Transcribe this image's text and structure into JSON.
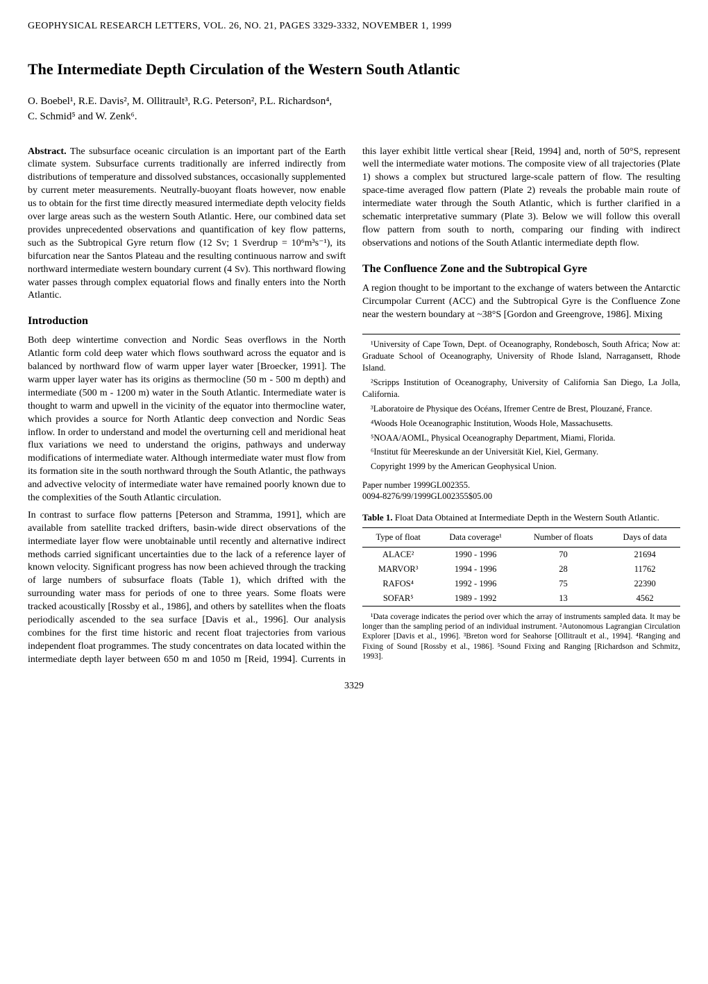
{
  "journal_header": "GEOPHYSICAL RESEARCH LETTERS, VOL. 26, NO. 21, PAGES 3329-3332, NOVEMBER 1, 1999",
  "title": "The Intermediate Depth Circulation of the Western South Atlantic",
  "authors_line1": "O. Boebel¹, R.E. Davis², M. Ollitrault³, R.G. Peterson², P.L. Richardson⁴,",
  "authors_line2": "C. Schmid⁵ and W. Zenk⁶.",
  "abstract_label": "Abstract.",
  "abstract_text": "The subsurface oceanic circulation is an important part of the Earth climate system. Subsurface currents traditionally are inferred indirectly from distributions of temperature and dissolved substances, occasionally supplemented by current meter measurements. Neutrally-buoyant floats however, now enable us to obtain for the first time directly measured intermediate depth velocity fields over large areas such as the western South Atlantic. Here, our combined data set provides unprecedented observations and quantification of key flow patterns, such as the Subtropical Gyre return flow (12 Sv; 1 Sverdrup = 10⁶m³s⁻¹), its bifurcation near the Santos Plateau and the resulting continuous narrow and swift northward intermediate western boundary current (4 Sv). This northward flowing water passes through complex equatorial flows and finally enters into the North Atlantic.",
  "section1_heading": "Introduction",
  "intro_p1": "Both deep wintertime convection and Nordic Seas overflows in the North Atlantic form cold deep water which flows southward across the equator and is balanced by northward flow of warm upper layer water [Broecker, 1991]. The warm upper layer water has its origins as thermocline (50 m - 500 m depth) and intermediate (500 m - 1200 m) water in the South Atlantic. Intermediate water is thought to warm and upwell in the vicinity of the equator into thermocline water, which provides a source for North Atlantic deep convection and Nordic Seas inflow. In order to understand and model the overturning cell and meridional heat flux variations we need to understand the origins, pathways and underway modifications of intermediate water. Although intermediate water must flow from its formation site in the south northward through the South Atlantic, the pathways and advective velocity of intermediate water have remained poorly known due to the complexities of the South Atlantic circulation.",
  "intro_p2": "In contrast to surface flow patterns [Peterson and Stramma, 1991], which are available from satellite tracked drifters, basin-wide direct observations of the intermediate layer flow were unobtainable until recently and alternative indirect methods carried significant uncertainties due to the lack of a reference layer of known velocity. Significant progress has now been achieved through the tracking of large numbers of subsurface floats (Table 1), which drifted with the surrounding water mass for periods of one to three years. Some floats were tracked acoustically [Rossby et al., 1986], and others by satellites when the floats periodically ascended to the sea surface [Davis et al., 1996]. Our analysis combines for the first time historic and recent float trajectories from various independent float programmes. The study concentrates on data located within the intermediate depth layer between 650 m and 1050 m [Reid, 1994]. Currents in this layer exhibit little vertical shear [Reid, 1994] and, north of 50°S, represent well the intermediate water motions. The composite view of all trajectories (Plate 1) shows a complex but structured large-scale pattern of flow. The resulting space-time averaged flow pattern (Plate 2) reveals the probable main route of intermediate water through the South Atlantic, which is further clarified in a schematic interpretative summary (Plate 3). Below we will follow this overall flow pattern from south to north, comparing our finding with indirect observations and notions of the South Atlantic intermediate depth flow.",
  "section2_heading": "The Confluence Zone and the Subtropical Gyre",
  "section2_p1": "A region thought to be important to the exchange of waters between the Antarctic Circumpolar Current (ACC) and the Subtropical Gyre is the Confluence Zone near the western boundary at ~38°S [Gordon and Greengrove, 1986]. Mixing",
  "footnote1": "¹University of Cape Town, Dept. of Oceanography, Rondebosch, South Africa; Now at: Graduate School of Oceanography, University of Rhode Island, Narragansett, Rhode Island.",
  "footnote2": "²Scripps Institution of Oceanography, University of California San Diego, La Jolla, California.",
  "footnote3": "³Laboratoire de Physique des Océans, Ifremer Centre de Brest, Plouzané, France.",
  "footnote4": "⁴Woods Hole Oceanographic Institution, Woods Hole, Massachusetts.",
  "footnote5": "⁵NOAA/AOML, Physical Oceanography Department, Miami, Florida.",
  "footnote6": "⁶Institut für Meereskunde an der Universität Kiel, Kiel, Germany.",
  "copyright": "Copyright 1999 by the American Geophysical Union.",
  "paper_number_line1": "Paper number 1999GL002355.",
  "paper_number_line2": "0094-8276/99/1999GL002355$05.00",
  "table_caption": "Table 1. Float Data Obtained at Intermediate Depth in the Western South Atlantic.",
  "table": {
    "columns": [
      "Type of float",
      "Data coverage¹",
      "Number of floats",
      "Days of data"
    ],
    "rows": [
      [
        "ALACE²",
        "1990 - 1996",
        "70",
        "21694"
      ],
      [
        "MARVOR³",
        "1994 - 1996",
        "28",
        "11762"
      ],
      [
        "RAFOS⁴",
        "1992 - 1996",
        "75",
        "22390"
      ],
      [
        "SOFAR⁵",
        "1989 - 1992",
        "13",
        "4562"
      ]
    ]
  },
  "table_note": "¹Data coverage indicates the period over which the array of instruments sampled data. It may be longer than the sampling period of an individual instrument. ²Autonomous Lagrangian Circulation Explorer [Davis et al., 1996]. ³Breton word for Seahorse [Ollitrault et al., 1994]. ⁴Ranging and Fixing of Sound [Rossby et al., 1986]. ⁵Sound Fixing and Ranging [Richardson and Schmitz, 1993].",
  "page_number": "3329"
}
